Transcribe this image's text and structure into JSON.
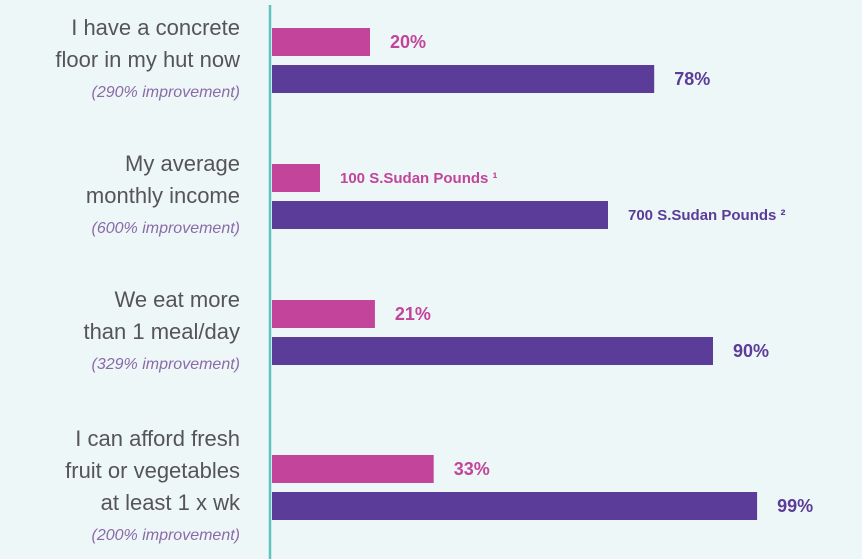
{
  "chart_data": {
    "type": "bar",
    "categories": [
      [
        "I have a concrete",
        "floor in my hut now"
      ],
      [
        "My average",
        "monthly income"
      ],
      [
        "We eat more",
        "than 1 meal/day"
      ],
      [
        "I can afford fresh",
        "fruit or vegetables",
        "at least 1 x wk"
      ]
    ],
    "annotations": [
      "(290% improvement)",
      "(600% improvement)",
      "(329% improvement)",
      "(200% improvement)"
    ],
    "series": [
      {
        "color": "#c2449b",
        "values": [
          20,
          100,
          21,
          33
        ],
        "value_labels": [
          "20%",
          "100 S.Sudan Pounds ¹",
          "21%",
          "33%"
        ]
      },
      {
        "color": "#5b3c98",
        "values": [
          78,
          700,
          90,
          99
        ],
        "value_labels": [
          "78%",
          "700 S.Sudan Pounds ²",
          "90%",
          "99%"
        ]
      }
    ]
  }
}
